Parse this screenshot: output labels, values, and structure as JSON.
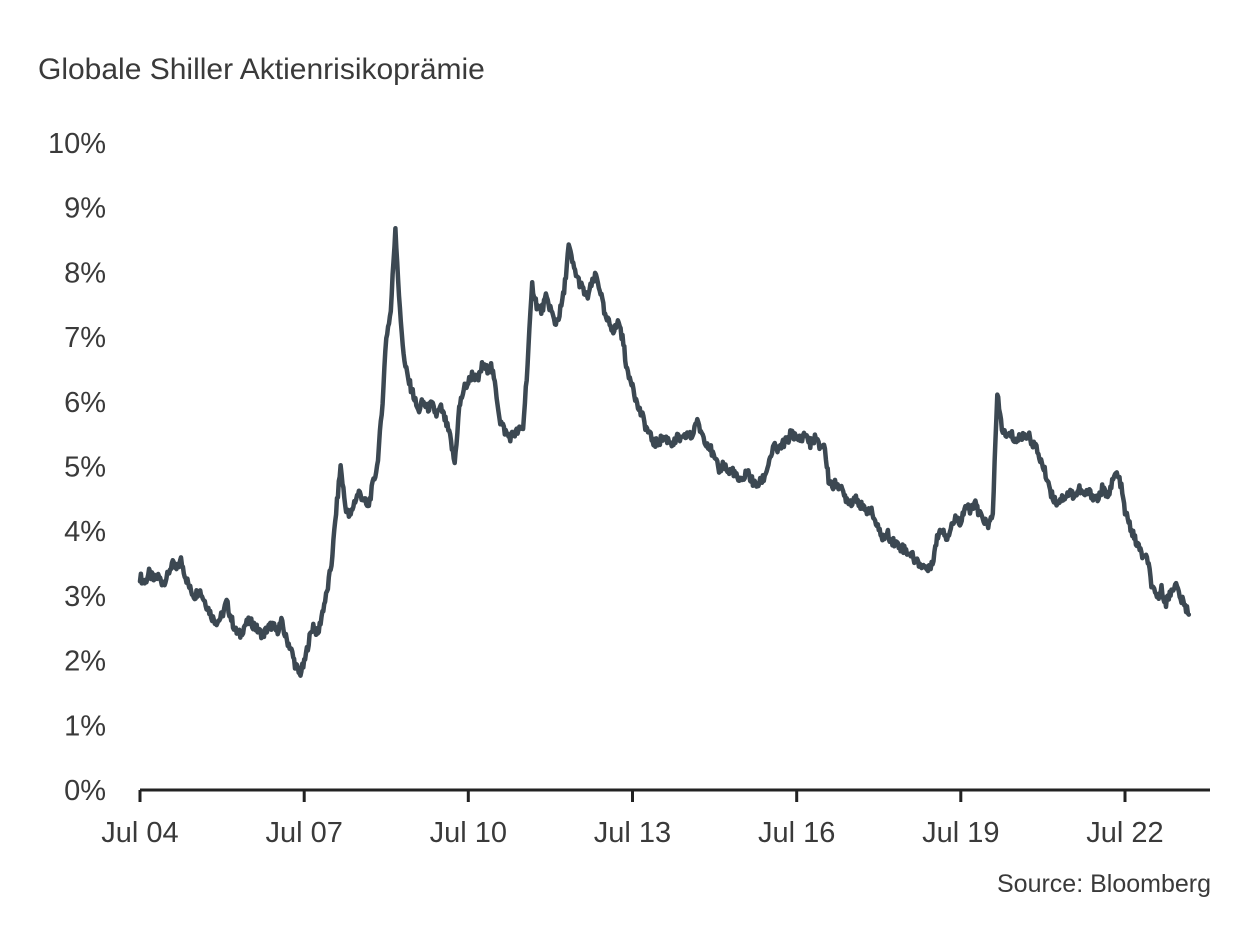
{
  "chart_data": {
    "type": "line",
    "title": "Globale Shiller Aktienrisikoprämie",
    "source": "Source: Bloomberg",
    "xlabel": "",
    "ylabel": "",
    "ylim": [
      0,
      10
    ],
    "grid": false,
    "legend": "none",
    "line_color": "#3c4852",
    "axis_color": "#222222",
    "y_ticks": [
      "10%",
      "9%",
      "8%",
      "7%",
      "6%",
      "5%",
      "4%",
      "3%",
      "2%",
      "1%",
      "0%"
    ],
    "x_ticks": [
      "Jul 04",
      "Jul 07",
      "Jul 10",
      "Jul 13",
      "Jul 16",
      "Jul 19",
      "Jul 22"
    ],
    "x_tick_month_index": [
      0,
      36,
      72,
      108,
      144,
      180,
      216
    ],
    "series": [
      {
        "name": "Globale Shiller Aktienrisikoprämie",
        "start": "Jul 2004",
        "end": "Sep 2023",
        "frequency": "monthly",
        "unit": "%",
        "values": [
          3.3,
          3.2,
          3.35,
          3.25,
          3.3,
          3.2,
          3.3,
          3.5,
          3.4,
          3.55,
          3.3,
          3.1,
          3.0,
          3.1,
          2.95,
          2.8,
          2.65,
          2.6,
          2.7,
          2.9,
          2.65,
          2.45,
          2.4,
          2.55,
          2.6,
          2.55,
          2.45,
          2.4,
          2.5,
          2.55,
          2.45,
          2.6,
          2.35,
          2.2,
          1.95,
          1.78,
          1.95,
          2.3,
          2.55,
          2.4,
          2.75,
          3.05,
          3.5,
          4.3,
          5.0,
          4.4,
          4.2,
          4.45,
          4.6,
          4.5,
          4.35,
          4.7,
          5.0,
          5.8,
          7.0,
          7.4,
          8.7,
          7.4,
          6.6,
          6.3,
          6.1,
          5.85,
          6.0,
          5.9,
          5.95,
          5.8,
          5.9,
          5.7,
          5.45,
          5.05,
          5.9,
          6.2,
          6.3,
          6.45,
          6.3,
          6.55,
          6.5,
          6.55,
          6.2,
          5.7,
          5.55,
          5.45,
          5.5,
          5.55,
          5.6,
          6.6,
          7.8,
          7.5,
          7.4,
          7.6,
          7.45,
          7.2,
          7.35,
          7.7,
          8.4,
          8.1,
          7.9,
          7.75,
          7.6,
          7.8,
          7.95,
          7.7,
          7.3,
          7.2,
          7.1,
          7.25,
          6.9,
          6.4,
          6.3,
          5.95,
          5.8,
          5.6,
          5.45,
          5.35,
          5.4,
          5.45,
          5.4,
          5.35,
          5.45,
          5.4,
          5.5,
          5.45,
          5.7,
          5.55,
          5.4,
          5.3,
          5.1,
          4.95,
          5.05,
          4.9,
          4.95,
          4.8,
          4.75,
          4.95,
          4.8,
          4.7,
          4.75,
          4.85,
          5.1,
          5.3,
          5.25,
          5.35,
          5.4,
          5.55,
          5.4,
          5.45,
          5.5,
          5.35,
          5.45,
          5.3,
          5.35,
          4.8,
          4.7,
          4.75,
          4.6,
          4.5,
          4.45,
          4.55,
          4.4,
          4.3,
          4.35,
          4.2,
          4.0,
          3.9,
          3.95,
          3.85,
          3.8,
          3.75,
          3.7,
          3.65,
          3.55,
          3.5,
          3.45,
          3.4,
          3.6,
          3.95,
          4.05,
          3.9,
          4.1,
          4.2,
          4.15,
          4.4,
          4.3,
          4.45,
          4.25,
          4.2,
          4.05,
          4.3,
          6.1,
          5.6,
          5.45,
          5.5,
          5.4,
          5.45,
          5.5,
          5.45,
          5.35,
          5.2,
          5.0,
          4.8,
          4.55,
          4.45,
          4.5,
          4.55,
          4.6,
          4.55,
          4.65,
          4.55,
          4.6,
          4.55,
          4.5,
          4.65,
          4.55,
          4.7,
          4.9,
          4.75,
          4.3,
          4.1,
          3.9,
          3.75,
          3.6,
          3.55,
          3.1,
          2.95,
          3.1,
          2.9,
          3.05,
          3.2,
          3.0,
          2.85,
          2.75
        ]
      }
    ]
  }
}
